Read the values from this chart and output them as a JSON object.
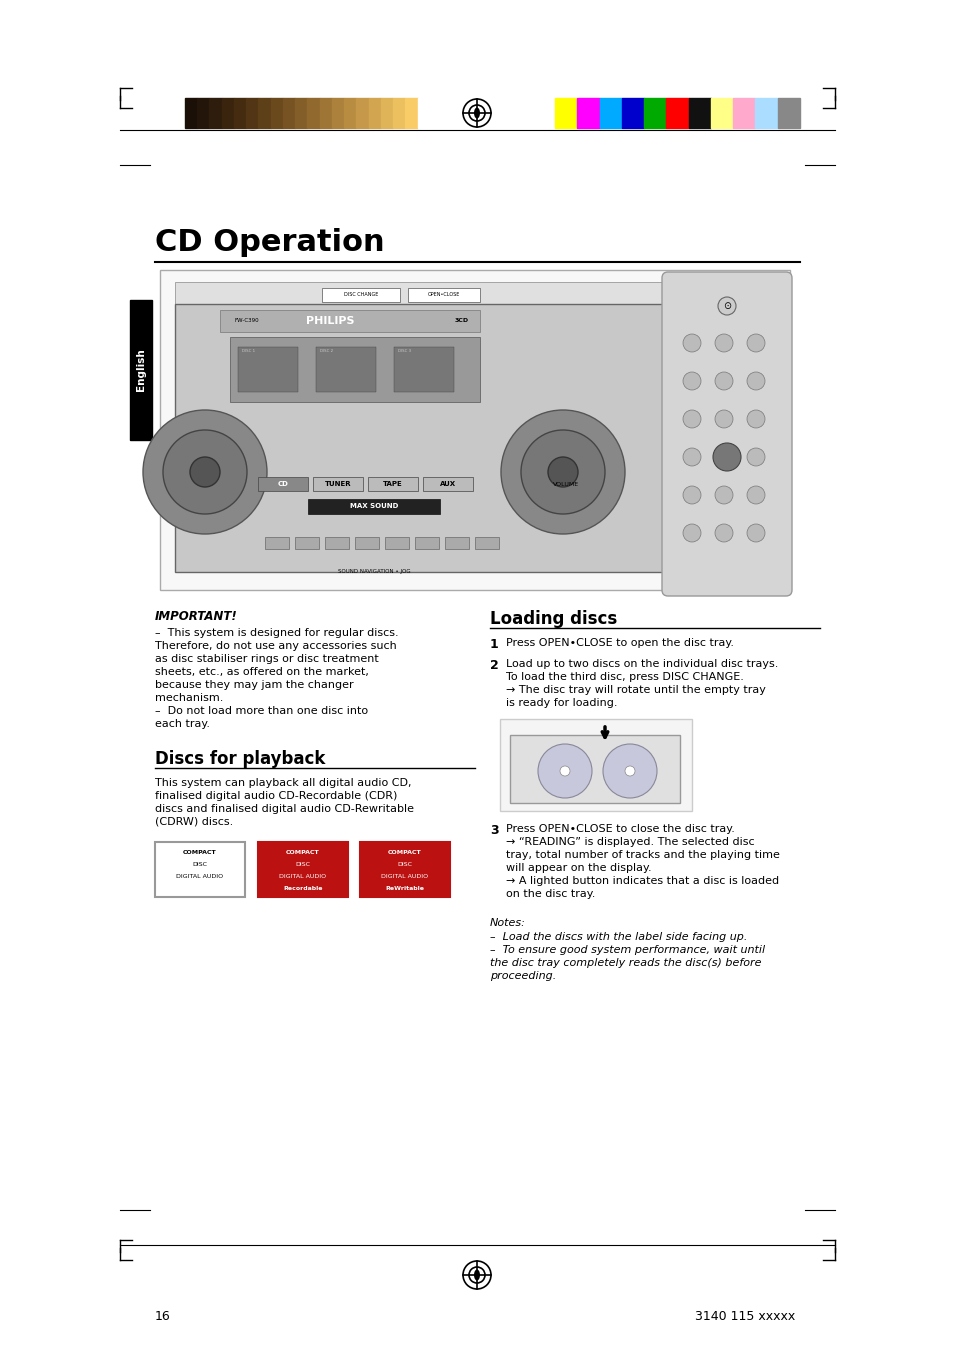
{
  "page_bg": "#ffffff",
  "title": "CD Operation",
  "color_bar_left_colors": [
    "#1a1008",
    "#231509",
    "#2e1c0c",
    "#3a240e",
    "#452c10",
    "#513514",
    "#5d3f18",
    "#6a491d",
    "#775323",
    "#845e28",
    "#91692e",
    "#9e7535",
    "#ab813b",
    "#b88d42",
    "#c59949",
    "#d2a651",
    "#dfb358",
    "#ecbf5f",
    "#f9cc67",
    "#ffffff"
  ],
  "color_bar_right_colors": [
    "#ffff00",
    "#ff00ff",
    "#00aaff",
    "#0000cc",
    "#00aa00",
    "#ff0000",
    "#111111",
    "#ffff88",
    "#ffaacc",
    "#aaddff",
    "#888888"
  ],
  "section_title_discs": "Discs for playback",
  "section_title_loading": "Loading discs",
  "important_title": "IMPORTANT!",
  "important_text": [
    "–  This system is designed for regular discs.",
    "Therefore, do not use any accessories such",
    "as disc stabiliser rings or disc treatment",
    "sheets, etc., as offered on the market,",
    "because they may jam the changer",
    "mechanism.",
    "–  Do not load more than one disc into",
    "each tray."
  ],
  "discs_text": "This system can playback all digital audio CD,\nfinalised digital audio CD-Recordable (CDR)\ndiscs and finalised digital audio CD-Rewritable\n(CDRW) discs.",
  "loading_steps": [
    {
      "num": "1",
      "text": "Press OPEN•CLOSE to open the disc tray."
    },
    {
      "num": "2",
      "text": "Load up to two discs on the individual disc trays.\nTo load the third disc, press DISC CHANGE.\n→ The disc tray will rotate until the empty tray\nis ready for loading."
    },
    {
      "num": "3",
      "text": "Press OPEN•CLOSE to close the disc tray.\n→ “READING” is displayed. The selected disc\ntray, total number of tracks and the playing time\nwill appear on the display.\n→ A lighted button indicates that a disc is loaded\non the disc tray."
    }
  ],
  "notes_title": "Notes:",
  "notes_text": [
    "–  Load the discs with the label side facing up.",
    "–  To ensure good system performance, wait until",
    "the disc tray completely reads the disc(s) before",
    "proceeding."
  ],
  "page_number": "16",
  "doc_number": "3140 115 xxxxx",
  "english_tab": "English"
}
